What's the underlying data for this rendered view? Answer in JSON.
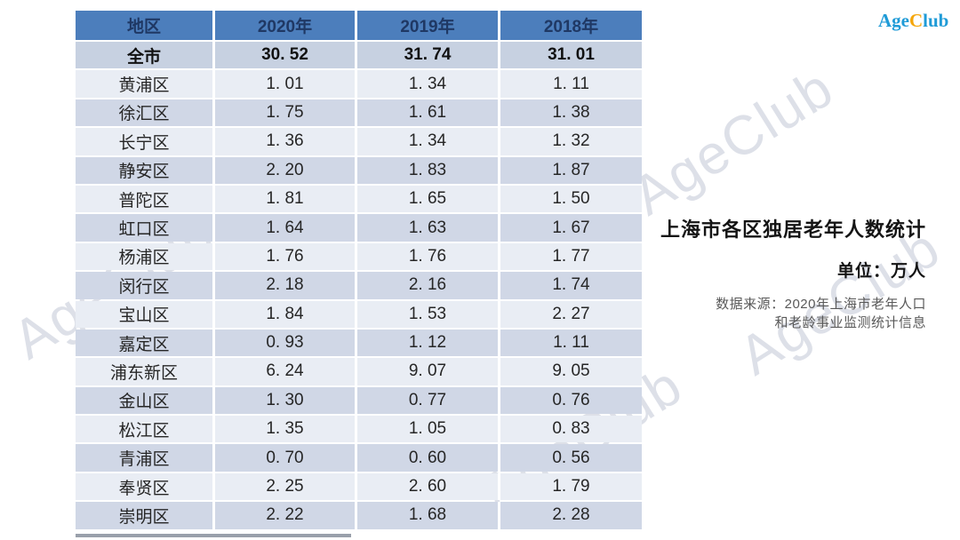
{
  "logo": {
    "part1": "Age",
    "part2": "C",
    "part3": "lub"
  },
  "watermark_text": "AgeClub",
  "panel": {
    "title": "上海市各区独居老年人数统计",
    "unit_label": "单位：万人",
    "source_line1": "数据来源：2020年上海市老年人口",
    "source_line2": "和老龄事业监测统计信息"
  },
  "colors": {
    "header_bg": "#4C7EBC",
    "header_text": "#1F3864",
    "total_row_bg": "#C7D1E1",
    "row_light_bg": "#E9EDF4",
    "row_dark_bg": "#D0D7E6",
    "logo_blue": "#1F9BD7",
    "logo_orange": "#F5A60A",
    "source_text": "#595959"
  },
  "chart_data": {
    "type": "table",
    "title": "上海市各区独居老年人数统计",
    "unit": "万人",
    "source": "数据来源：2020年上海市老年人口和老龄事业监测统计信息",
    "columns": [
      "地区",
      "2020年",
      "2019年",
      "2018年"
    ],
    "rows": [
      {
        "region": "全市",
        "values": [
          30.52,
          31.74,
          31.01
        ],
        "emphasis": true
      },
      {
        "region": "黄浦区",
        "values": [
          1.01,
          1.34,
          1.11
        ]
      },
      {
        "region": "徐汇区",
        "values": [
          1.75,
          1.61,
          1.38
        ]
      },
      {
        "region": "长宁区",
        "values": [
          1.36,
          1.34,
          1.32
        ]
      },
      {
        "region": "静安区",
        "values": [
          2.2,
          1.83,
          1.87
        ]
      },
      {
        "region": "普陀区",
        "values": [
          1.81,
          1.65,
          1.5
        ]
      },
      {
        "region": "虹口区",
        "values": [
          1.64,
          1.63,
          1.67
        ]
      },
      {
        "region": "杨浦区",
        "values": [
          1.76,
          1.76,
          1.77
        ]
      },
      {
        "region": "闵行区",
        "values": [
          2.18,
          2.16,
          1.74
        ]
      },
      {
        "region": "宝山区",
        "values": [
          1.84,
          1.53,
          2.27
        ]
      },
      {
        "region": "嘉定区",
        "values": [
          0.93,
          1.12,
          1.11
        ]
      },
      {
        "region": "浦东新区",
        "values": [
          6.24,
          9.07,
          9.05
        ]
      },
      {
        "region": "金山区",
        "values": [
          1.3,
          0.77,
          0.76
        ]
      },
      {
        "region": "松江区",
        "values": [
          1.35,
          1.05,
          0.83
        ]
      },
      {
        "region": "青浦区",
        "values": [
          0.7,
          0.6,
          0.56
        ]
      },
      {
        "region": "奉贤区",
        "values": [
          2.25,
          2.6,
          1.79
        ]
      },
      {
        "region": "崇明区",
        "values": [
          2.22,
          1.68,
          2.28
        ]
      }
    ]
  }
}
